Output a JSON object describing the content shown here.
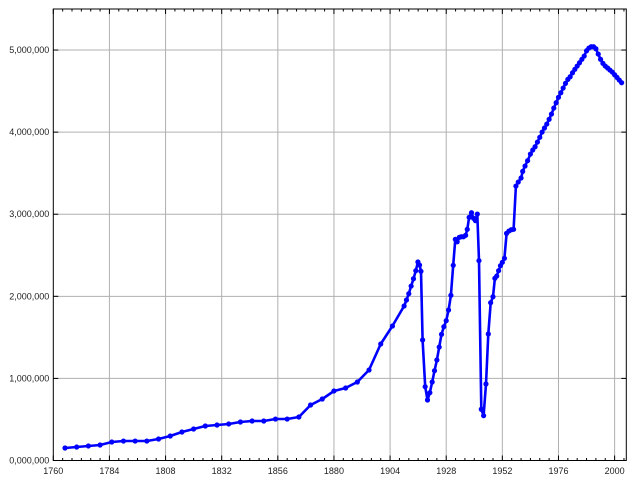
{
  "chart_data": {
    "type": "line",
    "title": "",
    "xlabel": "",
    "ylabel": "",
    "xlim": [
      1760,
      2005
    ],
    "ylim": [
      0,
      5500000
    ],
    "grid": true,
    "x_ticks": [
      1760,
      1784,
      1808,
      1832,
      1856,
      1880,
      1904,
      1928,
      1952,
      1976,
      2000
    ],
    "x_tick_labels": [
      "1760",
      "1784",
      "1808",
      "1832",
      "1856",
      "1880",
      "1904",
      "1928",
      "1952",
      "1976",
      "2000"
    ],
    "y_ticks": [
      0,
      1000000,
      2000000,
      3000000,
      4000000,
      5000000
    ],
    "y_tick_labels": [
      "0,000,000",
      "1,000,000",
      "2,000,000",
      "3,000,000",
      "4,000,000",
      "5,000,000"
    ],
    "line_color": "#0000ff",
    "series": [
      {
        "x": [
          1765,
          1770,
          1775,
          1780,
          1785,
          1790,
          1795,
          1800,
          1805,
          1810,
          1815,
          1820,
          1825,
          1830,
          1835,
          1840,
          1845,
          1850,
          1855,
          1860,
          1865,
          1870,
          1875,
          1880,
          1885,
          1890,
          1895,
          1900,
          1905,
          1910,
          1911,
          1912,
          1913,
          1914,
          1915,
          1915.9,
          1916.6,
          1917.2,
          1917.9,
          1919,
          1920,
          1921,
          1922,
          1923,
          1924,
          1925,
          1926,
          1927,
          1928,
          1929,
          1930,
          1931,
          1931.9,
          1932.7,
          1933.6,
          1934.5,
          1935.4,
          1936.3,
          1937,
          1937.8,
          1938.8,
          1939.7,
          1940.5,
          1941.3,
          1942,
          1943,
          1944,
          1945,
          1946,
          1947,
          1948,
          1948.8,
          1949.6,
          1950.4,
          1951.2,
          1952,
          1952.9,
          1953.8,
          1954.8,
          1955.8,
          1956.8,
          1957.8,
          1958.8,
          1960,
          1960.7,
          1961.7,
          1962.8,
          1964,
          1965,
          1966,
          1967,
          1968,
          1969,
          1970,
          1971,
          1972,
          1973,
          1974,
          1975,
          1976,
          1977,
          1978,
          1979,
          1980,
          1981,
          1982,
          1983,
          1984,
          1985,
          1986,
          1987,
          1988,
          1989,
          1990,
          1991,
          1992,
          1993,
          1994,
          1995,
          1996,
          1997,
          1998,
          1999,
          2000,
          2001,
          2002,
          2003
        ],
        "y": [
          152000,
          164000,
          177000,
          189000,
          225000,
          237000,
          237000,
          237000,
          262000,
          298000,
          347000,
          384000,
          420000,
          432000,
          445000,
          469000,
          481000,
          481000,
          505000,
          505000,
          530000,
          676000,
          749000,
          847000,
          883000,
          956000,
          1102000,
          1419000,
          1638000,
          1882000,
          1955000,
          2032000,
          2125000,
          2214000,
          2312000,
          2418000,
          2381000,
          2305000,
          1468000,
          899000,
          737000,
          826000,
          956000,
          1094000,
          1224000,
          1382000,
          1537000,
          1630000,
          1703000,
          1833000,
          2012000,
          2378000,
          2694000,
          2665000,
          2719000,
          2726000,
          2726000,
          2743000,
          2816000,
          2962000,
          3018000,
          2950000,
          2921000,
          3002000,
          2434000,
          624000,
          546000,
          932000,
          1541000,
          1922000,
          1995000,
          2219000,
          2247000,
          2312000,
          2373000,
          2414000,
          2463000,
          2767000,
          2795000,
          2811000,
          2816000,
          3343000,
          3392000,
          3441000,
          3522000,
          3587000,
          3652000,
          3733000,
          3782000,
          3822000,
          3879000,
          3937000,
          4001000,
          4050000,
          4098000,
          4156000,
          4220000,
          4293000,
          4358000,
          4424000,
          4480000,
          4537000,
          4594000,
          4643000,
          4675000,
          4723000,
          4765000,
          4805000,
          4845000,
          4887000,
          4927000,
          4991000,
          5024000,
          5040000,
          5040000,
          5016000,
          4951000,
          4887000,
          4838000,
          4805000,
          4781000,
          4756000,
          4732000,
          4699000,
          4667000,
          4634000,
          4602000
        ]
      }
    ]
  }
}
